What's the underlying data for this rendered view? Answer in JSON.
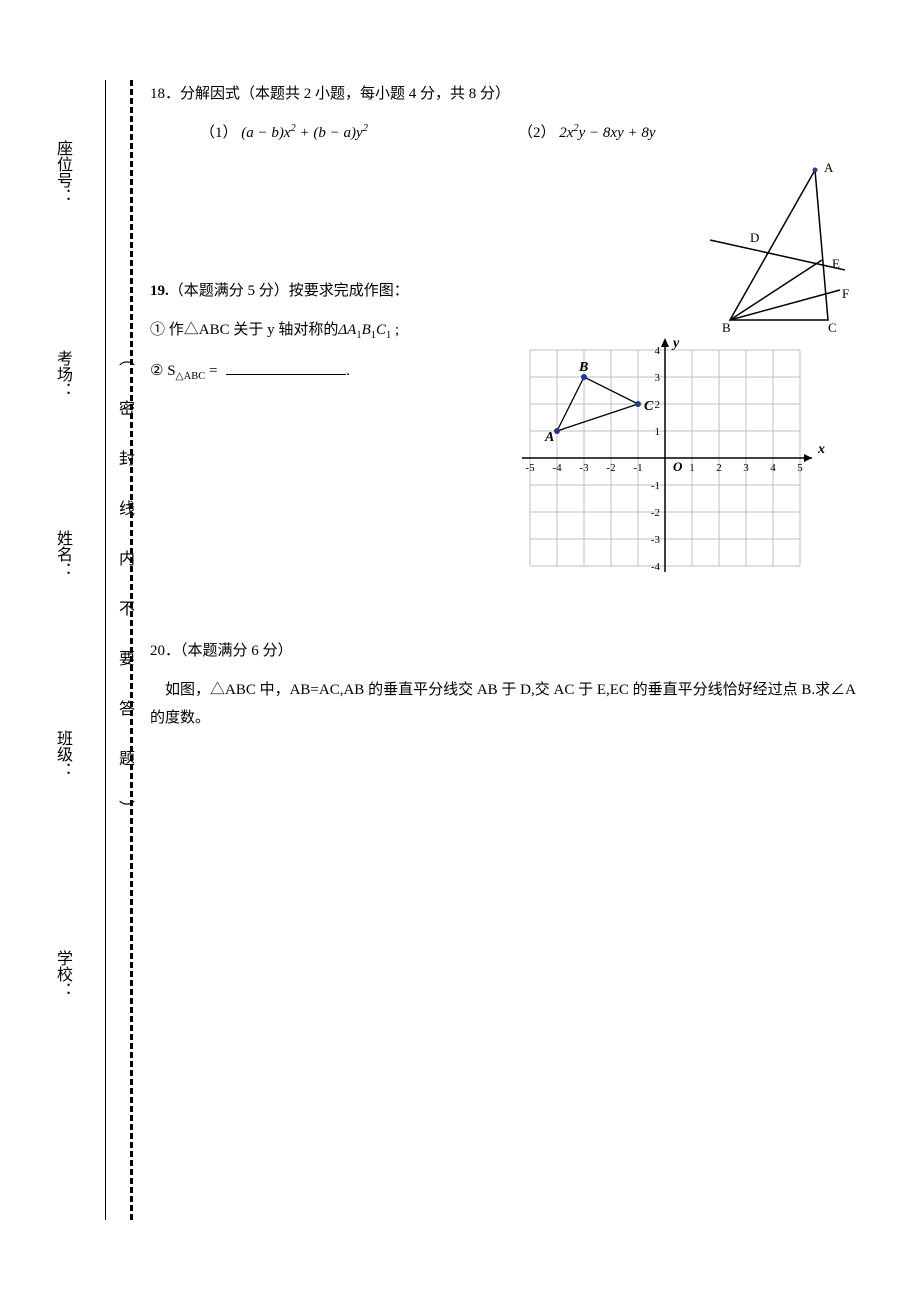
{
  "margin": {
    "labels": {
      "seat": "座位号：",
      "room": "考场：",
      "name": "姓名：",
      "class": "班级：",
      "school": "学校："
    },
    "seal_text": "（ 密 封 线 内 不 要 答 题 ）"
  },
  "q18": {
    "header": "18．分解因式（本题共 2 小题，每小题 4 分，共 8 分）",
    "part1_label": "（1）",
    "part2_label": "（2）",
    "triangle": {
      "labels": {
        "A": "A",
        "B": "B",
        "C": "C",
        "D": "D",
        "E": "E",
        "F": "F"
      }
    }
  },
  "q19": {
    "header_prefix": "19.",
    "header_rest": "（本题满分 5 分）按要求完成作图：",
    "line1_prefix": "① 作△ABC 关于 y 轴对称的",
    "line1_suffix": " ;",
    "line2_prefix": "② S",
    "line2_sub": "△ABC",
    "line2_eq": " = ",
    "line2_suffix": ".",
    "grid": {
      "x_range": [
        -5,
        5
      ],
      "y_range": [
        -4,
        4
      ],
      "x_label": "x",
      "y_label": "y",
      "origin_label": "O",
      "cell_size": 27,
      "points": {
        "A": {
          "x": -4,
          "y": 1,
          "label": "A"
        },
        "B": {
          "x": -3,
          "y": 3,
          "label": "B"
        },
        "C": {
          "x": -1,
          "y": 2,
          "label": "C"
        }
      },
      "x_ticks": [
        -5,
        -4,
        -3,
        -2,
        -1,
        1,
        2,
        3,
        4,
        5
      ],
      "y_ticks": [
        -4,
        -3,
        -2,
        -1,
        1,
        2,
        3,
        4
      ]
    }
  },
  "q20": {
    "header": "20．（本题满分 6 分）",
    "body": "如图，△ABC 中，AB=AC,AB 的垂直平分线交 AB 于 D,交 AC 于 E,EC 的垂直平分线恰好经过点 B.求∠A 的度数。"
  },
  "colors": {
    "grid_line": "#bfbfbf",
    "axis": "#000000",
    "point_fill": "#1f3a8f",
    "triangle_line": "#000000"
  }
}
